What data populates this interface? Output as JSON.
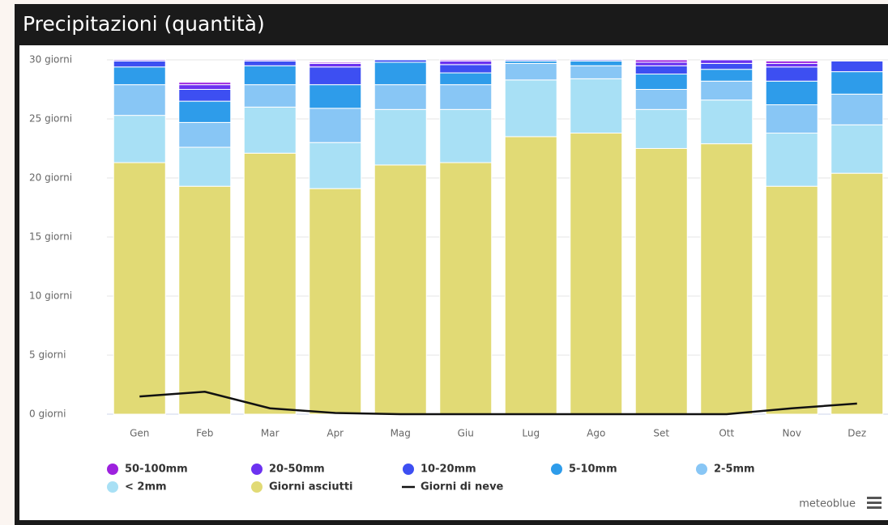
{
  "chart_data": {
    "type": "bar",
    "stacked": true,
    "title": "Precipitazioni (quantità)",
    "categories": [
      "Gen",
      "Feb",
      "Mar",
      "Apr",
      "Mag",
      "Giu",
      "Lug",
      "Ago",
      "Set",
      "Ott",
      "Nov",
      "Dez"
    ],
    "ylim": [
      0,
      30
    ],
    "yticks": [
      {
        "value": 0,
        "label": "0 giorni"
      },
      {
        "value": 5,
        "label": "5 giorni"
      },
      {
        "value": 10,
        "label": "10 giorni"
      },
      {
        "value": 15,
        "label": "15 giorni"
      },
      {
        "value": 20,
        "label": "20 giorni"
      },
      {
        "value": 25,
        "label": "25 giorni"
      },
      {
        "value": 30,
        "label": "30 giorni"
      }
    ],
    "grid": true,
    "series": [
      {
        "name": "50-100mm",
        "color": "#9d21de",
        "values": [
          0,
          0.2,
          0,
          0.1,
          0,
          0.1,
          0,
          0,
          0.2,
          0,
          0.2,
          0
        ]
      },
      {
        "name": "20-50mm",
        "color": "#6c32f0",
        "values": [
          0.1,
          0.4,
          0.1,
          0.3,
          0,
          0.3,
          0,
          0,
          0.3,
          0.3,
          0.3,
          0
        ]
      },
      {
        "name": "10-20mm",
        "color": "#3d4ff2",
        "values": [
          0.5,
          1.0,
          0.4,
          1.5,
          0.2,
          0.7,
          0.1,
          0.1,
          0.7,
          0.5,
          1.2,
          0.9
        ]
      },
      {
        "name": "5-10mm",
        "color": "#2e9cea",
        "values": [
          1.5,
          1.8,
          1.6,
          2.0,
          1.9,
          1.0,
          0.2,
          0.4,
          1.3,
          1.0,
          2.0,
          1.9
        ]
      },
      {
        "name": "2-5mm",
        "color": "#88c6f5",
        "values": [
          2.6,
          2.1,
          1.9,
          2.9,
          2.1,
          2.1,
          1.4,
          1.1,
          1.7,
          1.6,
          2.4,
          2.6
        ]
      },
      {
        "name": "< 2mm",
        "color": "#a8e0f5",
        "values": [
          4.0,
          3.3,
          3.9,
          3.9,
          4.7,
          4.5,
          4.8,
          4.6,
          3.3,
          3.7,
          4.5,
          4.1
        ]
      },
      {
        "name": "Giorni asciutti",
        "color": "#e1da75",
        "values": [
          21.3,
          19.3,
          22.1,
          19.1,
          21.1,
          21.3,
          23.5,
          23.8,
          22.5,
          22.9,
          19.3,
          20.4
        ]
      },
      {
        "name": "Giorni di neve",
        "type": "line",
        "color": "#111111",
        "values": [
          1.5,
          1.9,
          0.5,
          0.1,
          0,
          0,
          0,
          0,
          0,
          0,
          0.5,
          0.9
        ]
      }
    ],
    "credit": "meteoblue"
  }
}
